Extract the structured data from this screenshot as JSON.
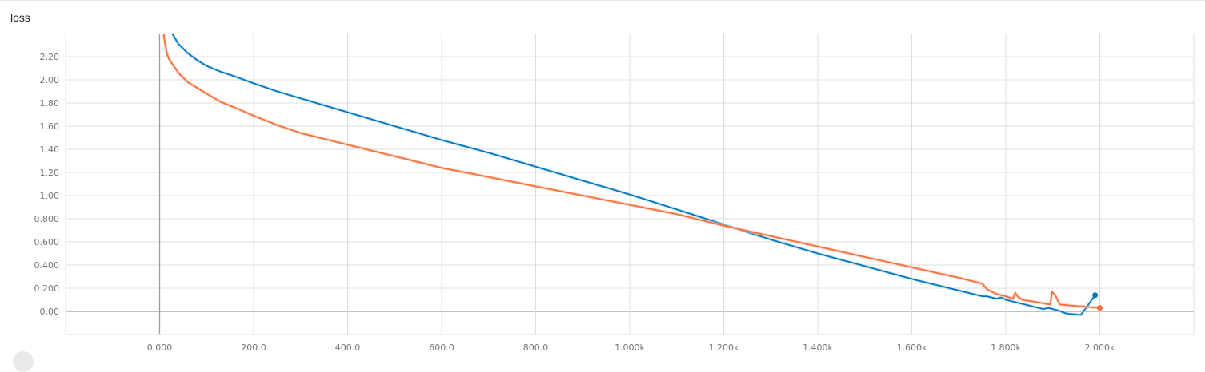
{
  "chart_data": {
    "type": "line",
    "title": "loss",
    "xlim": [
      -200,
      2200
    ],
    "ylim": [
      -0.2,
      2.4
    ],
    "x_ticks": [
      0,
      200,
      400,
      600,
      800,
      1000,
      1200,
      1400,
      1600,
      1800,
      2000
    ],
    "x_tick_labels": [
      "0.000",
      "200.0",
      "400.0",
      "600.0",
      "800.0",
      "1.000k",
      "1.200k",
      "1.400k",
      "1.600k",
      "1.800k",
      "2.000k"
    ],
    "y_ticks": [
      0,
      0.2,
      0.4,
      0.6,
      0.8,
      1.0,
      1.2,
      1.4,
      1.6,
      1.8,
      2.0,
      2.2
    ],
    "y_tick_labels": [
      "0.00",
      "0.200",
      "0.400",
      "0.600",
      "0.800",
      "1.00",
      "1.20",
      "1.40",
      "1.60",
      "1.80",
      "2.00",
      "2.20"
    ],
    "grid": true,
    "series": [
      {
        "color": "#0077bb",
        "raw_color": "#b9dcf2",
        "x": [
          24,
          40,
          60,
          80,
          100,
          130,
          160,
          200,
          250,
          300,
          400,
          500,
          600,
          700,
          800,
          900,
          1000,
          1100,
          1200,
          1300,
          1400,
          1500,
          1600,
          1700,
          1750,
          1760,
          1770,
          1780,
          1790,
          1800,
          1820,
          1840,
          1860,
          1880,
          1890,
          1900,
          1910,
          1930,
          1960,
          1990
        ],
        "y": [
          2.42,
          2.31,
          2.23,
          2.17,
          2.12,
          2.07,
          2.03,
          1.97,
          1.9,
          1.84,
          1.72,
          1.6,
          1.48,
          1.37,
          1.25,
          1.13,
          1.01,
          0.88,
          0.75,
          0.62,
          0.5,
          0.39,
          0.28,
          0.18,
          0.13,
          0.13,
          0.12,
          0.11,
          0.12,
          0.1,
          0.08,
          0.06,
          0.04,
          0.02,
          0.03,
          0.02,
          0.01,
          -0.02,
          -0.03,
          0.14
        ]
      },
      {
        "color": "#f4703c",
        "raw_color": "#f8c7ad",
        "x": [
          8,
          12,
          16,
          20,
          25,
          30,
          35,
          40,
          50,
          60,
          80,
          100,
          130,
          160,
          200,
          250,
          300,
          400,
          500,
          600,
          700,
          800,
          900,
          1000,
          1100,
          1200,
          1300,
          1400,
          1500,
          1600,
          1700,
          1750,
          1760,
          1780,
          1800,
          1815,
          1820,
          1825,
          1835,
          1850,
          1880,
          1895,
          1898,
          1905,
          1915,
          1940,
          1970,
          2000
        ],
        "y": [
          2.42,
          2.3,
          2.22,
          2.18,
          2.15,
          2.12,
          2.09,
          2.06,
          2.02,
          1.98,
          1.93,
          1.88,
          1.81,
          1.76,
          1.69,
          1.61,
          1.54,
          1.44,
          1.34,
          1.24,
          1.16,
          1.08,
          1.0,
          0.92,
          0.84,
          0.74,
          0.65,
          0.56,
          0.47,
          0.38,
          0.29,
          0.24,
          0.19,
          0.15,
          0.13,
          0.11,
          0.16,
          0.13,
          0.1,
          0.09,
          0.07,
          0.06,
          0.17,
          0.14,
          0.06,
          0.05,
          0.04,
          0.03
        ]
      }
    ]
  }
}
